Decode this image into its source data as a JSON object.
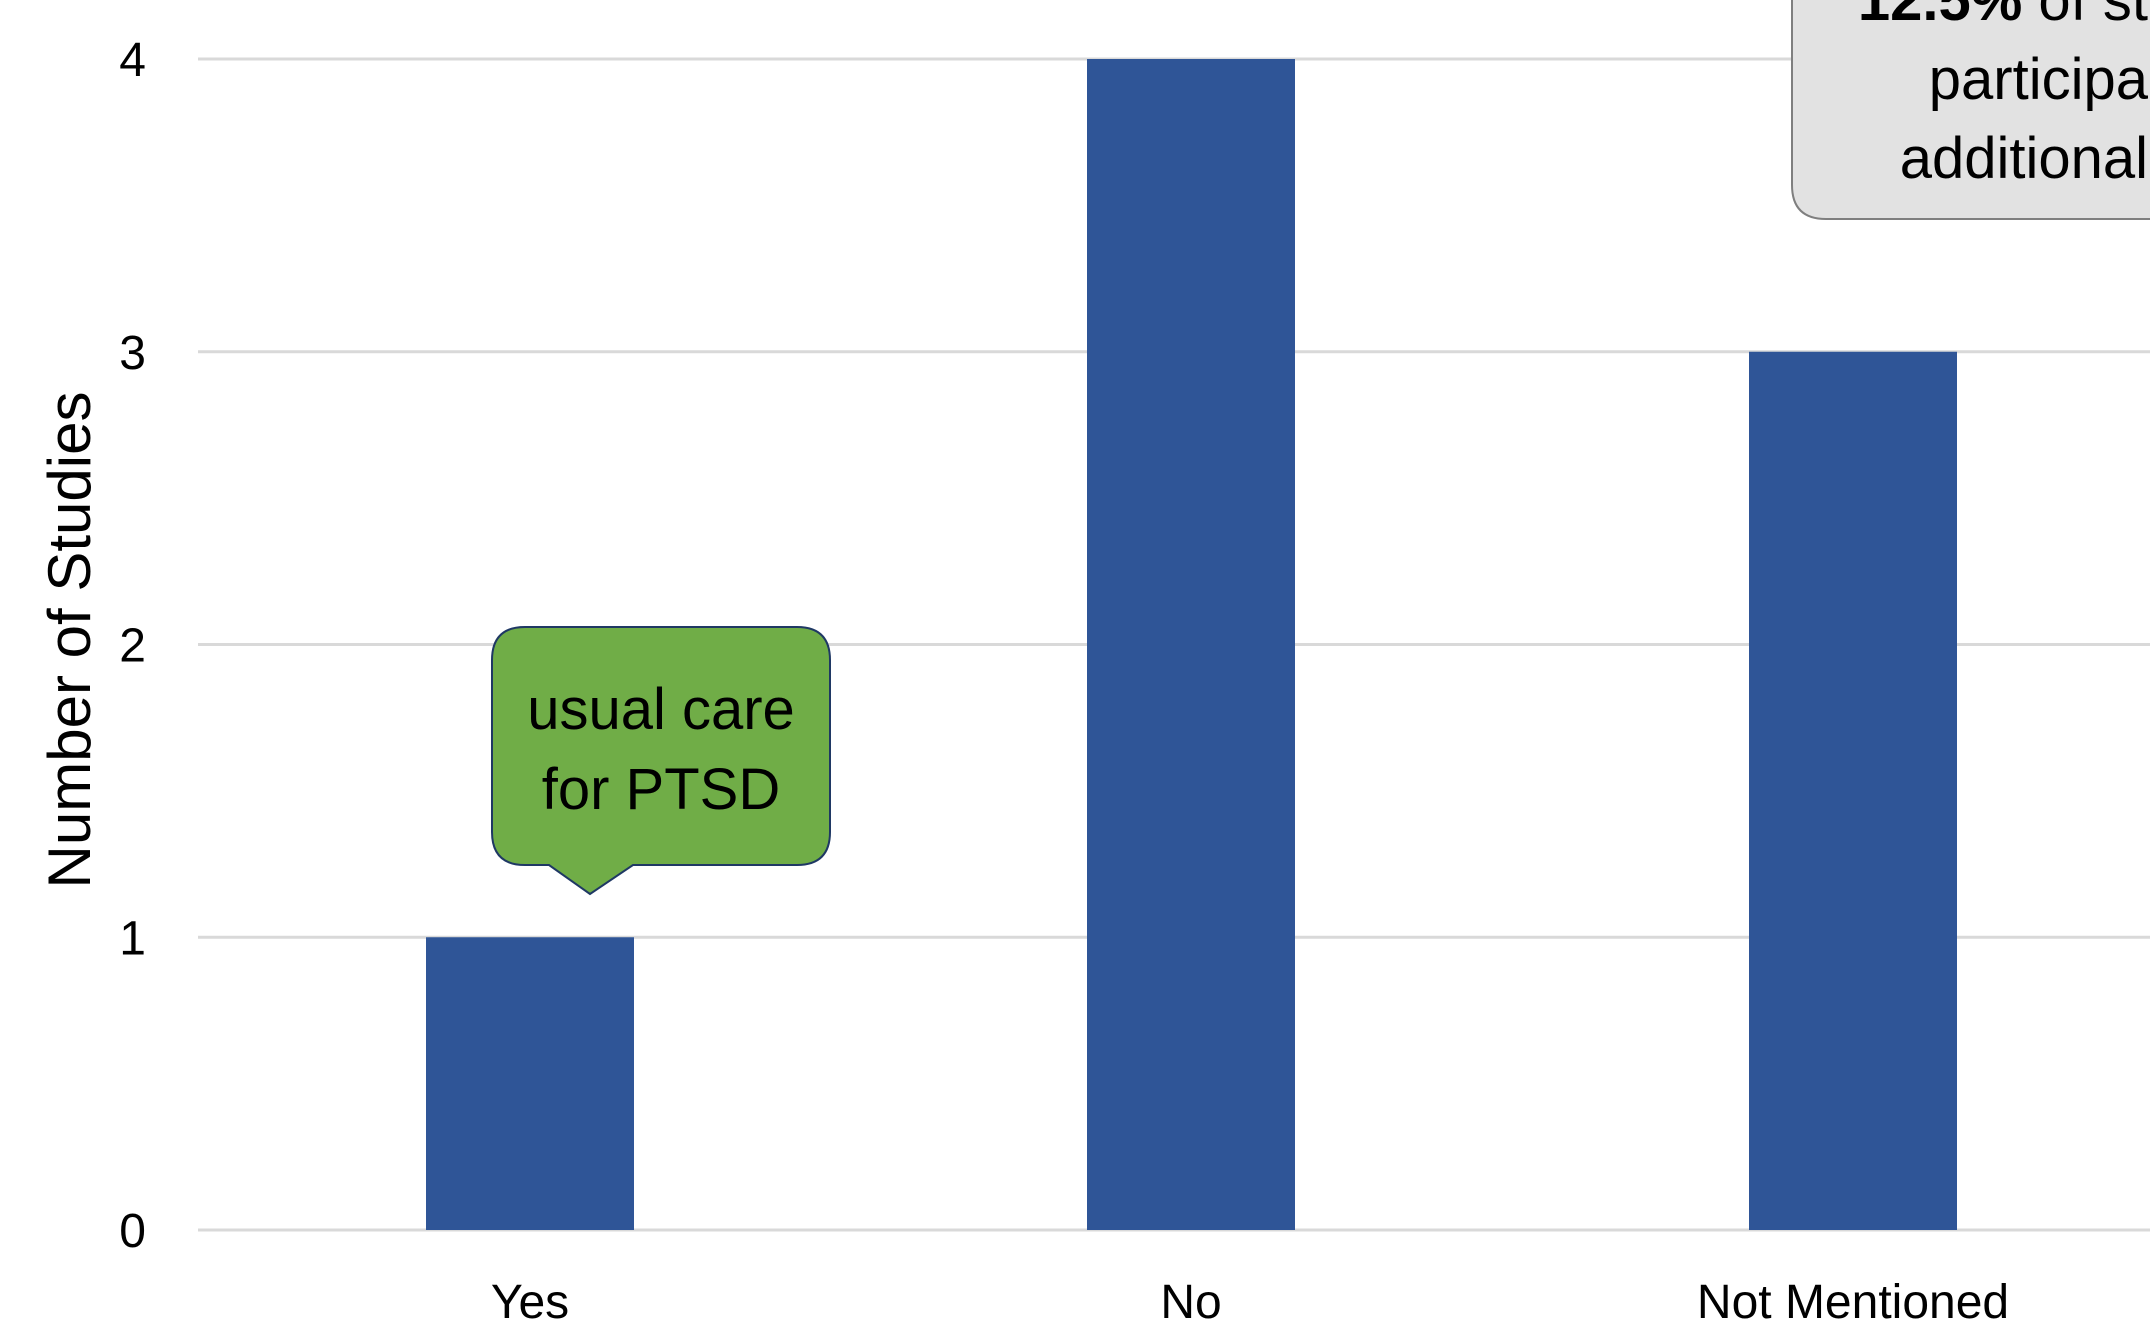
{
  "chart_data": {
    "type": "bar",
    "title": "",
    "xlabel": "",
    "ylabel": "Number of Studies",
    "categories": [
      "Yes",
      "No",
      "Not Mentioned"
    ],
    "values": [
      1,
      4,
      3
    ],
    "ylim": [
      0,
      4
    ],
    "yticks": [
      "0",
      "1",
      "2",
      "3",
      "4"
    ],
    "grid": true,
    "bar_color": "#2F5597",
    "annotations": [
      {
        "category": "Yes",
        "lines": [
          "usual care",
          "for PTSD"
        ],
        "background": "#70AD47"
      },
      {
        "category": "Not Mentioned",
        "lines": [
          "12.5% of st",
          "participa",
          "additional"
        ],
        "background": "#E2E2E2",
        "bold_prefix": "12.5%"
      }
    ]
  }
}
